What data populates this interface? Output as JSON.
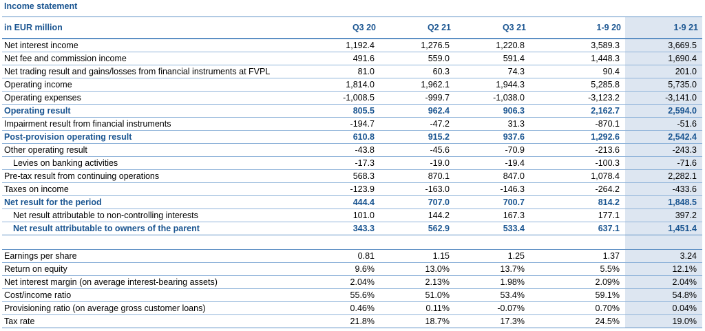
{
  "title": "Income statement",
  "header": {
    "label": "in EUR million",
    "columns": [
      "Q3 20",
      "Q2 21",
      "Q3 21",
      "1-9 20",
      "1-9 21"
    ]
  },
  "income_rows": [
    {
      "label": "Net interest income",
      "values": [
        "1,192.4",
        "1,276.5",
        "1,220.8",
        "3,589.3",
        "3,669.5"
      ],
      "highlight": false,
      "indent": false
    },
    {
      "label": "Net fee and commission income",
      "values": [
        "491.6",
        "559.0",
        "591.4",
        "1,448.3",
        "1,690.4"
      ],
      "highlight": false,
      "indent": false
    },
    {
      "label": "Net trading result and gains/losses from financial instruments at FVPL",
      "values": [
        "81.0",
        "60.3",
        "74.3",
        "90.4",
        "201.0"
      ],
      "highlight": false,
      "indent": false
    },
    {
      "label": "Operating income",
      "values": [
        "1,814.0",
        "1,962.1",
        "1,944.3",
        "5,285.8",
        "5,735.0"
      ],
      "highlight": false,
      "indent": false
    },
    {
      "label": "Operating expenses",
      "values": [
        "-1,008.5",
        "-999.7",
        "-1,038.0",
        "-3,123.2",
        "-3,141.0"
      ],
      "highlight": false,
      "indent": false
    },
    {
      "label": "Operating result",
      "values": [
        "805.5",
        "962.4",
        "906.3",
        "2,162.7",
        "2,594.0"
      ],
      "highlight": true,
      "indent": false
    },
    {
      "label": "Impairment result from financial instruments",
      "values": [
        "-194.7",
        "-47.2",
        "31.3",
        "-870.1",
        "-51.6"
      ],
      "highlight": false,
      "indent": false
    },
    {
      "label": "Post-provision operating result",
      "values": [
        "610.8",
        "915.2",
        "937.6",
        "1,292.6",
        "2,542.4"
      ],
      "highlight": true,
      "indent": false
    },
    {
      "label": "Other operating result",
      "values": [
        "-43.8",
        "-45.6",
        "-70.9",
        "-213.6",
        "-243.3"
      ],
      "highlight": false,
      "indent": false
    },
    {
      "label": "Levies on banking activities",
      "values": [
        "-17.3",
        "-19.0",
        "-19.4",
        "-100.3",
        "-71.6"
      ],
      "highlight": false,
      "indent": true
    },
    {
      "label": "Pre-tax result from continuing operations",
      "values": [
        "568.3",
        "870.1",
        "847.0",
        "1,078.4",
        "2,282.1"
      ],
      "highlight": false,
      "indent": false
    },
    {
      "label": "Taxes on income",
      "values": [
        "-123.9",
        "-163.0",
        "-146.3",
        "-264.2",
        "-433.6"
      ],
      "highlight": false,
      "indent": false
    },
    {
      "label": "Net result for the period",
      "values": [
        "444.4",
        "707.0",
        "700.7",
        "814.2",
        "1,848.5"
      ],
      "highlight": true,
      "indent": false
    },
    {
      "label": "Net result attributable to non-controlling interests",
      "values": [
        "101.0",
        "144.2",
        "167.3",
        "177.1",
        "397.2"
      ],
      "highlight": false,
      "indent": true
    },
    {
      "label": "Net result attributable to owners of the parent",
      "values": [
        "343.3",
        "562.9",
        "533.4",
        "637.1",
        "1,451.4"
      ],
      "highlight": true,
      "indent": true
    }
  ],
  "ratio_rows": [
    {
      "label": "Earnings per share",
      "values": [
        "0.81",
        "1.15",
        "1.25",
        "1.37",
        "3.24"
      ]
    },
    {
      "label": "Return on equity",
      "values": [
        "9.6%",
        "13.0%",
        "13.7%",
        "5.5%",
        "12.1%"
      ]
    },
    {
      "label": "Net interest margin (on average interest-bearing assets)",
      "values": [
        "2.04%",
        "2.13%",
        "1.98%",
        "2.09%",
        "2.04%"
      ]
    },
    {
      "label": "Cost/income ratio",
      "values": [
        "55.6%",
        "51.0%",
        "53.4%",
        "59.1%",
        "54.8%"
      ]
    },
    {
      "label": "Provisioning ratio (on average gross customer loans)",
      "values": [
        "0.46%",
        "0.11%",
        "-0.07%",
        "0.70%",
        "0.04%"
      ]
    },
    {
      "label": "Tax rate",
      "values": [
        "21.8%",
        "18.7%",
        "17.3%",
        "24.5%",
        "19.0%"
      ]
    }
  ],
  "colors": {
    "accent": "#1a5591",
    "shade": "#dde6f1",
    "rule": "#8fb3d9"
  }
}
